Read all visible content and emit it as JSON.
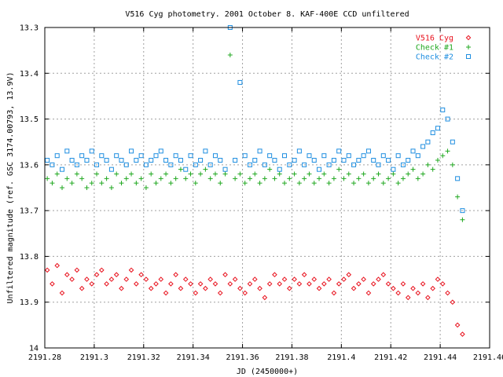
{
  "chart_data": {
    "type": "scatter",
    "title": "V516 Cyg photometry. 2001 October 8. KAF-400E CCD unfiltered",
    "xlabel": "JD (2450000+)",
    "ylabel": "Unfiltered magnitude (ref. GSC 3174.00793, 13.9V)",
    "xlim": [
      2191.28,
      2191.46
    ],
    "ylim": [
      14.0,
      13.3
    ],
    "y_inverted": true,
    "grid": true,
    "legend_position": "top-right",
    "xticks": [
      "2191.28",
      "2191.3",
      "2191.32",
      "2191.34",
      "2191.36",
      "2191.38",
      "2191.4",
      "2191.42",
      "2191.44",
      "2191.46"
    ],
    "xtick_values": [
      2191.28,
      2191.3,
      2191.32,
      2191.34,
      2191.36,
      2191.38,
      2191.4,
      2191.42,
      2191.44,
      2191.46
    ],
    "yticks": [
      "13.3",
      "13.4",
      "13.5",
      "13.6",
      "13.7",
      "13.8",
      "13.9",
      "14"
    ],
    "ytick_values": [
      13.3,
      13.4,
      13.5,
      13.6,
      13.7,
      13.8,
      13.9,
      14.0
    ],
    "series": [
      {
        "name": "V516 Cyg",
        "color": "#e8101c",
        "marker": "diamond",
        "x": [
          2191.281,
          2191.283,
          2191.285,
          2191.287,
          2191.289,
          2191.291,
          2191.293,
          2191.295,
          2191.297,
          2191.299,
          2191.301,
          2191.303,
          2191.305,
          2191.307,
          2191.309,
          2191.311,
          2191.313,
          2191.315,
          2191.317,
          2191.319,
          2191.321,
          2191.323,
          2191.325,
          2191.327,
          2191.329,
          2191.331,
          2191.333,
          2191.335,
          2191.337,
          2191.339,
          2191.341,
          2191.343,
          2191.345,
          2191.347,
          2191.349,
          2191.351,
          2191.353,
          2191.355,
          2191.357,
          2191.359,
          2191.361,
          2191.363,
          2191.365,
          2191.367,
          2191.369,
          2191.371,
          2191.373,
          2191.375,
          2191.377,
          2191.379,
          2191.381,
          2191.383,
          2191.385,
          2191.387,
          2191.389,
          2191.391,
          2191.393,
          2191.395,
          2191.397,
          2191.399,
          2191.401,
          2191.403,
          2191.405,
          2191.407,
          2191.409,
          2191.411,
          2191.413,
          2191.415,
          2191.417,
          2191.419,
          2191.421,
          2191.423,
          2191.425,
          2191.427,
          2191.429,
          2191.431,
          2191.433,
          2191.435,
          2191.437,
          2191.439,
          2191.441,
          2191.443,
          2191.445,
          2191.447,
          2191.449
        ],
        "y": [
          13.83,
          13.86,
          13.82,
          13.88,
          13.84,
          13.85,
          13.83,
          13.87,
          13.85,
          13.86,
          13.84,
          13.83,
          13.86,
          13.85,
          13.84,
          13.87,
          13.85,
          13.83,
          13.86,
          13.84,
          13.85,
          13.87,
          13.86,
          13.85,
          13.88,
          13.86,
          13.84,
          13.87,
          13.85,
          13.86,
          13.88,
          13.86,
          13.87,
          13.85,
          13.86,
          13.88,
          13.84,
          13.86,
          13.85,
          13.87,
          13.88,
          13.86,
          13.85,
          13.87,
          13.89,
          13.86,
          13.84,
          13.86,
          13.85,
          13.87,
          13.85,
          13.86,
          13.84,
          13.86,
          13.85,
          13.87,
          13.86,
          13.85,
          13.88,
          13.86,
          13.85,
          13.84,
          13.87,
          13.86,
          13.85,
          13.88,
          13.86,
          13.85,
          13.84,
          13.86,
          13.87,
          13.88,
          13.86,
          13.89,
          13.87,
          13.88,
          13.86,
          13.89,
          13.87,
          13.85,
          13.86,
          13.88,
          13.9,
          13.95,
          13.97
        ]
      },
      {
        "name": "Check #1",
        "color": "#20a820",
        "marker": "plus",
        "x": [
          2191.281,
          2191.283,
          2191.285,
          2191.287,
          2191.289,
          2191.291,
          2191.293,
          2191.295,
          2191.297,
          2191.299,
          2191.301,
          2191.303,
          2191.305,
          2191.307,
          2191.309,
          2191.311,
          2191.313,
          2191.315,
          2191.317,
          2191.319,
          2191.321,
          2191.323,
          2191.325,
          2191.327,
          2191.329,
          2191.331,
          2191.333,
          2191.335,
          2191.337,
          2191.339,
          2191.341,
          2191.343,
          2191.345,
          2191.347,
          2191.349,
          2191.351,
          2191.353,
          2191.355,
          2191.357,
          2191.359,
          2191.361,
          2191.363,
          2191.365,
          2191.367,
          2191.369,
          2191.371,
          2191.373,
          2191.375,
          2191.377,
          2191.379,
          2191.381,
          2191.383,
          2191.385,
          2191.387,
          2191.389,
          2191.391,
          2191.393,
          2191.395,
          2191.397,
          2191.399,
          2191.401,
          2191.403,
          2191.405,
          2191.407,
          2191.409,
          2191.411,
          2191.413,
          2191.415,
          2191.417,
          2191.419,
          2191.421,
          2191.423,
          2191.425,
          2191.427,
          2191.429,
          2191.431,
          2191.433,
          2191.435,
          2191.437,
          2191.439,
          2191.441,
          2191.443,
          2191.445,
          2191.447,
          2191.449
        ],
        "y": [
          13.63,
          13.64,
          13.62,
          13.65,
          13.63,
          13.64,
          13.62,
          13.63,
          13.65,
          13.64,
          13.62,
          13.64,
          13.63,
          13.65,
          13.62,
          13.64,
          13.63,
          13.62,
          13.64,
          13.63,
          13.65,
          13.62,
          13.64,
          13.63,
          13.62,
          13.64,
          13.63,
          13.61,
          13.63,
          13.62,
          13.64,
          13.62,
          13.61,
          13.63,
          13.62,
          13.64,
          13.62,
          13.36,
          13.63,
          13.62,
          13.64,
          13.63,
          13.62,
          13.64,
          13.63,
          13.61,
          13.63,
          13.62,
          13.64,
          13.63,
          13.62,
          13.64,
          13.63,
          13.62,
          13.64,
          13.63,
          13.62,
          13.64,
          13.63,
          13.61,
          13.63,
          13.62,
          13.64,
          13.63,
          13.62,
          13.64,
          13.63,
          13.62,
          13.64,
          13.63,
          13.62,
          13.64,
          13.63,
          13.62,
          13.61,
          13.63,
          13.62,
          13.6,
          13.61,
          13.59,
          13.58,
          13.57,
          13.6,
          13.67,
          13.72
        ]
      },
      {
        "name": "Check #2",
        "color": "#1e8ee0",
        "marker": "square",
        "x": [
          2191.281,
          2191.283,
          2191.285,
          2191.287,
          2191.289,
          2191.291,
          2191.293,
          2191.295,
          2191.297,
          2191.299,
          2191.301,
          2191.303,
          2191.305,
          2191.307,
          2191.309,
          2191.311,
          2191.313,
          2191.315,
          2191.317,
          2191.319,
          2191.321,
          2191.323,
          2191.325,
          2191.327,
          2191.329,
          2191.331,
          2191.333,
          2191.335,
          2191.337,
          2191.339,
          2191.341,
          2191.343,
          2191.345,
          2191.347,
          2191.349,
          2191.351,
          2191.353,
          2191.355,
          2191.357,
          2191.359,
          2191.361,
          2191.363,
          2191.365,
          2191.367,
          2191.369,
          2191.371,
          2191.373,
          2191.375,
          2191.377,
          2191.379,
          2191.381,
          2191.383,
          2191.385,
          2191.387,
          2191.389,
          2191.391,
          2191.393,
          2191.395,
          2191.397,
          2191.399,
          2191.401,
          2191.403,
          2191.405,
          2191.407,
          2191.409,
          2191.411,
          2191.413,
          2191.415,
          2191.417,
          2191.419,
          2191.421,
          2191.423,
          2191.425,
          2191.427,
          2191.429,
          2191.431,
          2191.433,
          2191.435,
          2191.437,
          2191.439,
          2191.441,
          2191.443,
          2191.445,
          2191.447,
          2191.449
        ],
        "y": [
          13.59,
          13.6,
          13.58,
          13.61,
          13.57,
          13.59,
          13.6,
          13.58,
          13.59,
          13.57,
          13.6,
          13.58,
          13.59,
          13.61,
          13.58,
          13.59,
          13.6,
          13.57,
          13.59,
          13.58,
          13.6,
          13.59,
          13.58,
          13.57,
          13.59,
          13.6,
          13.58,
          13.59,
          13.61,
          13.58,
          13.6,
          13.59,
          13.57,
          13.6,
          13.58,
          13.59,
          13.61,
          13.3,
          13.59,
          13.42,
          13.58,
          13.6,
          13.59,
          13.57,
          13.6,
          13.58,
          13.59,
          13.61,
          13.58,
          13.6,
          13.59,
          13.57,
          13.6,
          13.58,
          13.59,
          13.61,
          13.58,
          13.6,
          13.59,
          13.57,
          13.59,
          13.58,
          13.6,
          13.59,
          13.58,
          13.57,
          13.59,
          13.6,
          13.58,
          13.59,
          13.61,
          13.58,
          13.6,
          13.59,
          13.57,
          13.58,
          13.56,
          13.55,
          13.53,
          13.52,
          13.48,
          13.5,
          13.55,
          13.63,
          13.7
        ]
      }
    ]
  }
}
